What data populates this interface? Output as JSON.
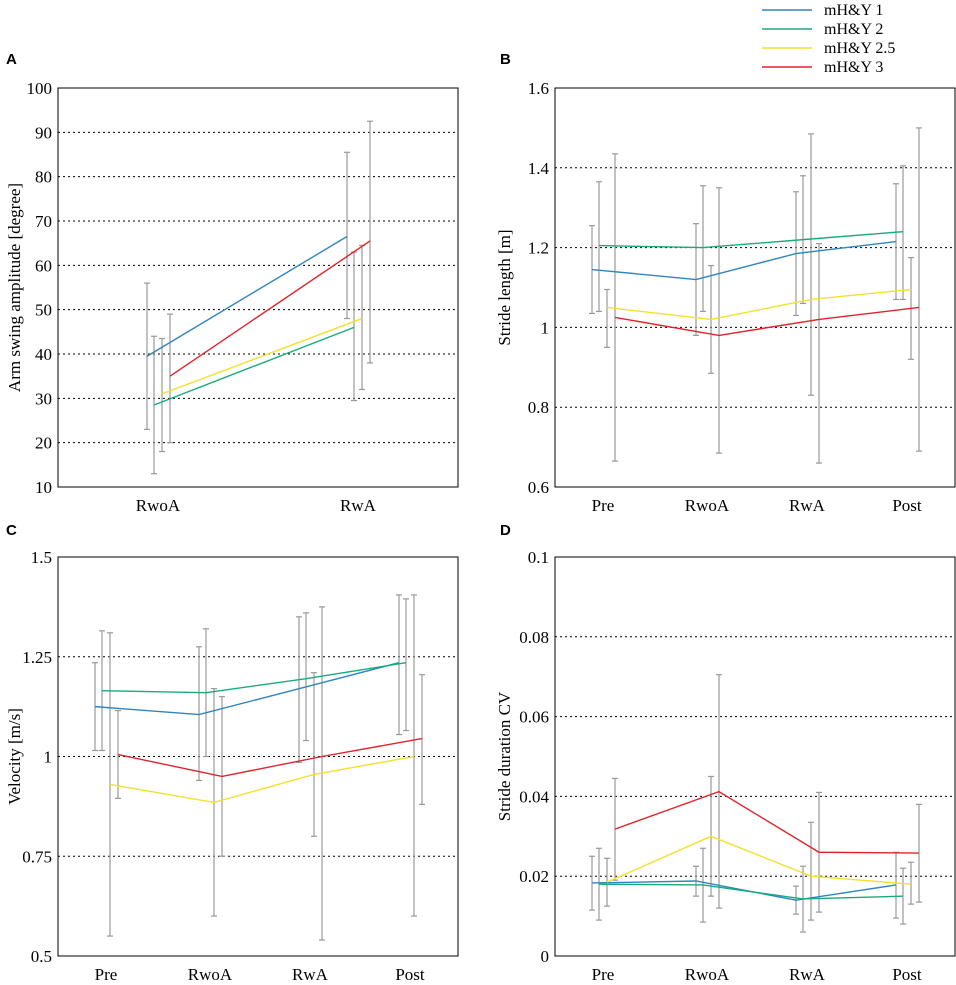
{
  "legend": [
    {
      "name": "mH&Y 1",
      "color": "#2E86C1"
    },
    {
      "name": "mH&Y 2",
      "color": "#1AAA7A"
    },
    {
      "name": "mH&Y 2.5",
      "color": "#F3E12E"
    },
    {
      "name": "mH&Y 3",
      "color": "#E0242B"
    }
  ],
  "errorbar_color": "#999999",
  "chart_data": [
    {
      "panel": "A",
      "type": "line",
      "ylabel": "Arm swing amplitude [degree]",
      "categories": [
        "RwoA",
        "RwA"
      ],
      "ylim": [
        10,
        100
      ],
      "yticks": [
        10,
        20,
        30,
        40,
        50,
        60,
        70,
        80,
        90,
        100
      ],
      "ytick_labels": [
        "10",
        "20",
        "30",
        "40",
        "50",
        "60",
        "70",
        "80",
        "90",
        "100"
      ],
      "grid": "horizontal-dotted",
      "series": [
        {
          "name": "mH&Y 1",
          "values": [
            39.5,
            66.5
          ],
          "err": [
            [
              23,
              56
            ],
            [
              48,
              85.5
            ]
          ]
        },
        {
          "name": "mH&Y 2",
          "values": [
            28.5,
            46
          ],
          "err": [
            [
              13,
              44
            ],
            [
              29.5,
              63
            ]
          ]
        },
        {
          "name": "mH&Y 2.5",
          "values": [
            31,
            48
          ],
          "err": [
            [
              18,
              43.5
            ],
            [
              32,
              64.5
            ]
          ]
        },
        {
          "name": "mH&Y 3",
          "values": [
            35,
            65.5
          ],
          "err": [
            [
              20,
              49
            ],
            [
              38,
              92.5
            ]
          ]
        }
      ]
    },
    {
      "panel": "B",
      "type": "line",
      "ylabel": "Stride length [m]",
      "categories": [
        "Pre",
        "RwoA",
        "RwA",
        "Post"
      ],
      "ylim": [
        0.6,
        1.6
      ],
      "yticks": [
        0.6,
        0.8,
        1.0,
        1.2,
        1.4,
        1.6
      ],
      "ytick_labels": [
        "0.6",
        "0.8",
        "1",
        "1.2",
        "1.4",
        "1.6"
      ],
      "grid": "horizontal-dotted",
      "series": [
        {
          "name": "mH&Y 1",
          "values": [
            1.145,
            1.12,
            1.185,
            1.215
          ],
          "err": [
            [
              1.035,
              1.255
            ],
            [
              0.98,
              1.26
            ],
            [
              1.03,
              1.34
            ],
            [
              1.07,
              1.36
            ]
          ]
        },
        {
          "name": "mH&Y 2",
          "values": [
            1.205,
            1.2,
            1.22,
            1.24
          ],
          "err": [
            [
              1.04,
              1.365
            ],
            [
              1.04,
              1.355
            ],
            [
              1.06,
              1.38
            ],
            [
              1.07,
              1.405
            ]
          ]
        },
        {
          "name": "mH&Y 2.5",
          "values": [
            1.05,
            1.02,
            1.07,
            1.095
          ],
          "err": [
            [
              0.95,
              1.095
            ],
            [
              0.885,
              1.155
            ],
            [
              0.83,
              1.485
            ],
            [
              0.92,
              1.175
            ]
          ]
        },
        {
          "name": "mH&Y 3",
          "values": [
            1.025,
            0.98,
            1.02,
            1.05
          ],
          "err": [
            [
              0.665,
              1.435
            ],
            [
              0.685,
              1.35
            ],
            [
              0.66,
              1.21
            ],
            [
              0.69,
              1.5
            ]
          ]
        }
      ]
    },
    {
      "panel": "C",
      "type": "line",
      "ylabel": "Velocity [m/s]",
      "categories": [
        "Pre",
        "RwoA",
        "RwA",
        "Post"
      ],
      "ylim": [
        0.5,
        1.5
      ],
      "yticks": [
        0.5,
        0.75,
        1.0,
        1.25,
        1.5
      ],
      "ytick_labels": [
        "0.5",
        "0.75",
        "1",
        "1.25",
        "1.5"
      ],
      "grid": "horizontal-dotted",
      "series": [
        {
          "name": "mH&Y 1",
          "values": [
            1.125,
            1.105,
            1.17,
            1.235
          ],
          "err": [
            [
              1.015,
              1.235
            ],
            [
              0.94,
              1.275
            ],
            [
              0.985,
              1.35
            ],
            [
              1.055,
              1.405
            ]
          ]
        },
        {
          "name": "mH&Y 2",
          "values": [
            1.165,
            1.16,
            1.195,
            1.235
          ],
          "err": [
            [
              1.015,
              1.315
            ],
            [
              1.0,
              1.32
            ],
            [
              1.04,
              1.36
            ],
            [
              1.065,
              1.395
            ]
          ]
        },
        {
          "name": "mH&Y 2.5",
          "values": [
            0.93,
            0.885,
            0.955,
            1.0
          ],
          "err": [
            [
              0.55,
              1.31
            ],
            [
              0.6,
              1.17
            ],
            [
              0.8,
              1.21
            ],
            [
              0.6,
              1.405
            ]
          ]
        },
        {
          "name": "mH&Y 3",
          "values": [
            1.005,
            0.95,
            1.0,
            1.045
          ],
          "err": [
            [
              0.895,
              1.115
            ],
            [
              0.75,
              1.15
            ],
            [
              0.54,
              1.375
            ],
            [
              0.88,
              1.205
            ]
          ]
        }
      ]
    },
    {
      "panel": "D",
      "type": "line",
      "ylabel": "Stride duration CV",
      "categories": [
        "Pre",
        "RwoA",
        "RwA",
        "Post"
      ],
      "ylim": [
        0,
        0.1
      ],
      "yticks": [
        0,
        0.02,
        0.04,
        0.06,
        0.08,
        0.1
      ],
      "ytick_labels": [
        "0",
        "0.02",
        "0.04",
        "0.06",
        "0.08",
        "0.1"
      ],
      "grid": "horizontal-dotted",
      "series": [
        {
          "name": "mH&Y 1",
          "values": [
            0.0183,
            0.0188,
            0.014,
            0.0178
          ],
          "err": [
            [
              0.0115,
              0.025
            ],
            [
              0.015,
              0.0225
            ],
            [
              0.0105,
              0.0175
            ],
            [
              0.0095,
              0.026
            ]
          ]
        },
        {
          "name": "mH&Y 2",
          "values": [
            0.018,
            0.0178,
            0.0143,
            0.015
          ],
          "err": [
            [
              0.009,
              0.027
            ],
            [
              0.0085,
              0.027
            ],
            [
              0.006,
              0.0225
            ],
            [
              0.008,
              0.022
            ]
          ]
        },
        {
          "name": "mH&Y 2.5",
          "values": [
            0.0185,
            0.03,
            0.02,
            0.018
          ],
          "err": [
            [
              0.0125,
              0.0245
            ],
            [
              0.015,
              0.045
            ],
            [
              0.009,
              0.0335
            ],
            [
              0.013,
              0.0235
            ]
          ]
        },
        {
          "name": "mH&Y 3",
          "values": [
            0.0318,
            0.0412,
            0.026,
            0.0258
          ],
          "err": [
            [
              0.019,
              0.0445
            ],
            [
              0.012,
              0.0705
            ],
            [
              0.011,
              0.041
            ],
            [
              0.0135,
              0.038
            ]
          ]
        }
      ]
    }
  ]
}
